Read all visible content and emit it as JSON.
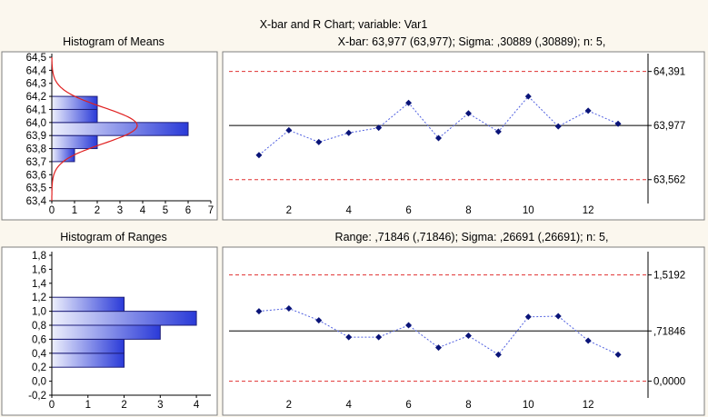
{
  "header": {
    "main_title": "X-bar and R Chart; variable:  Var1",
    "xbar_subtitle": "X-bar: 63,977 (63,977); Sigma: ,30889 (,30889); n: 5,",
    "range_subtitle": "Range: ,71846 (,71846); Sigma: ,26691 (,26691); n: 5,"
  },
  "colors": {
    "bar_light": "#eef0fc",
    "bar_dark": "#2a3ad8",
    "limit": "#e03030",
    "series": "#5060e0",
    "point": "#0a1478",
    "curve": "#e02020"
  },
  "chart_data": [
    {
      "type": "bar",
      "orientation": "horizontal",
      "title": "Histogram of Means",
      "y_ticks": [
        "64,5",
        "64,4",
        "64,3",
        "64,2",
        "64,1",
        "64,0",
        "63,9",
        "63,8",
        "63,7",
        "63,6",
        "63,5",
        "63,4"
      ],
      "x_ticks": [
        "0",
        "1",
        "2",
        "3",
        "4",
        "5",
        "6",
        "7"
      ],
      "ylim": [
        63.4,
        64.5
      ],
      "xlim": [
        0,
        7
      ],
      "bins": [
        {
          "from": 63.7,
          "to": 63.8,
          "count": 1
        },
        {
          "from": 63.8,
          "to": 63.9,
          "count": 2
        },
        {
          "from": 63.9,
          "to": 64.0,
          "count": 6
        },
        {
          "from": 64.0,
          "to": 64.1,
          "count": 2
        },
        {
          "from": 64.1,
          "to": 64.2,
          "count": 2
        }
      ],
      "normal_curve": {
        "mean": 63.977,
        "sigma": 0.138
      }
    },
    {
      "type": "line",
      "y_ticks": [
        "64,391",
        "63,977",
        "63,562"
      ],
      "x_ticks": [
        "2",
        "4",
        "6",
        "8",
        "10",
        "12"
      ],
      "xlim": [
        0,
        14
      ],
      "ylim": [
        63.4,
        64.5
      ],
      "x": [
        1,
        2,
        3,
        4,
        5,
        6,
        7,
        8,
        9,
        10,
        11,
        12,
        13
      ],
      "values": [
        63.75,
        63.94,
        63.85,
        63.92,
        63.96,
        64.15,
        63.88,
        64.07,
        63.93,
        64.2,
        63.97,
        64.09,
        63.99
      ],
      "center_line": 63.977,
      "ucl": 64.391,
      "lcl": 63.562
    },
    {
      "type": "bar",
      "orientation": "horizontal",
      "title": "Histogram of Ranges",
      "y_ticks": [
        "1,8",
        "1,6",
        "1,4",
        "1,2",
        "1,0",
        "0,8",
        "0,6",
        "0,4",
        "0,2",
        "0,0",
        "-0,2"
      ],
      "x_ticks": [
        "0",
        "1",
        "2",
        "3",
        "4"
      ],
      "ylim": [
        -0.2,
        1.8
      ],
      "xlim": [
        0,
        4.4
      ],
      "bins": [
        {
          "from": 0.2,
          "to": 0.4,
          "count": 2
        },
        {
          "from": 0.4,
          "to": 0.6,
          "count": 2
        },
        {
          "from": 0.6,
          "to": 0.8,
          "count": 3
        },
        {
          "from": 0.8,
          "to": 1.0,
          "count": 4
        },
        {
          "from": 1.0,
          "to": 1.2,
          "count": 2
        }
      ]
    },
    {
      "type": "line",
      "y_ticks": [
        "1,5192",
        ",71846",
        "0,0000"
      ],
      "x_ticks": [
        "2",
        "4",
        "6",
        "8",
        "10",
        "12"
      ],
      "xlim": [
        0,
        14
      ],
      "ylim": [
        -0.2,
        1.8
      ],
      "x": [
        1,
        2,
        3,
        4,
        5,
        6,
        7,
        8,
        9,
        10,
        11,
        12,
        13
      ],
      "values": [
        1.0,
        1.04,
        0.87,
        0.63,
        0.63,
        0.8,
        0.48,
        0.65,
        0.38,
        0.92,
        0.93,
        0.58,
        0.38
      ],
      "center_line": 0.71846,
      "ucl": 1.5192,
      "lcl": 0.0
    }
  ]
}
